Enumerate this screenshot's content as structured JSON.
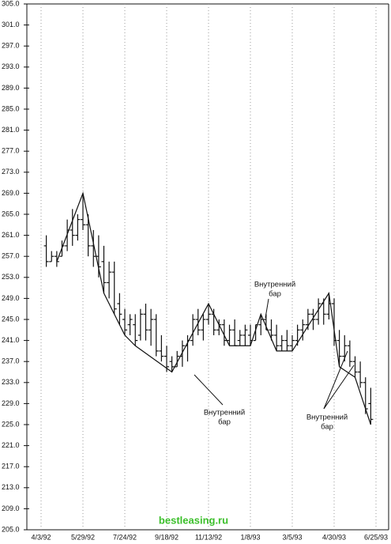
{
  "chart_data": {
    "type": "ohlc",
    "categories": [
      "4/3/92",
      null,
      null,
      null,
      null,
      null,
      null,
      null,
      "5/29/92",
      null,
      null,
      null,
      null,
      null,
      null,
      null,
      "7/24/92",
      null,
      null,
      null,
      null,
      null,
      null,
      null,
      "9/18/92",
      null,
      null,
      null,
      null,
      null,
      null,
      null,
      "11/13/92",
      null,
      null,
      null,
      null,
      null,
      null,
      null,
      "1/8/93",
      null,
      null,
      null,
      null,
      null,
      null,
      null,
      "3/5/93",
      null,
      null,
      null,
      null,
      null,
      null,
      null,
      "4/30/93",
      null,
      null,
      null,
      null,
      null,
      null,
      null,
      "6/25/93"
    ],
    "open": [
      null,
      259,
      256,
      257,
      257,
      259,
      262,
      261,
      264,
      263,
      259,
      257,
      256,
      252,
      254,
      248,
      245,
      244,
      244,
      242,
      246,
      243,
      245,
      239,
      238,
      237,
      236,
      238,
      240,
      241,
      245,
      243,
      245,
      246,
      243,
      244,
      241,
      243,
      241,
      242,
      242,
      241,
      244,
      245,
      243,
      242,
      240,
      241,
      240,
      241,
      243,
      244,
      246,
      245,
      248,
      246,
      248,
      241,
      238,
      240,
      237,
      235,
      233,
      229,
      null
    ],
    "high": [
      null,
      261,
      258,
      258,
      260,
      264,
      266,
      265,
      269,
      265,
      262,
      261,
      259,
      256,
      256,
      250,
      247,
      246,
      246,
      247,
      248,
      247,
      246,
      242,
      240,
      238,
      239,
      241,
      242,
      246,
      247,
      246,
      248,
      247,
      245,
      245,
      244,
      245,
      243,
      244,
      244,
      244,
      246,
      246,
      245,
      244,
      242,
      243,
      242,
      244,
      245,
      247,
      247,
      249,
      249,
      250,
      249,
      243,
      242,
      241,
      238,
      237,
      234,
      232,
      null
    ],
    "low": [
      null,
      255,
      256,
      255,
      257,
      258,
      259,
      260,
      262,
      257,
      255,
      253,
      250,
      249,
      246,
      244,
      242,
      242,
      240,
      241,
      241,
      240,
      238,
      237,
      235,
      235,
      236,
      236,
      237,
      240,
      242,
      241,
      244,
      242,
      242,
      240,
      240,
      240,
      240,
      240,
      240,
      241,
      242,
      243,
      241,
      239,
      239,
      239,
      239,
      240,
      241,
      243,
      243,
      244,
      244,
      245,
      240,
      236,
      237,
      236,
      234,
      232,
      227,
      225,
      null
    ],
    "close": [
      null,
      256,
      257,
      256,
      259,
      262,
      261,
      264,
      263,
      259,
      257,
      255,
      252,
      254,
      247,
      246,
      243,
      245,
      241,
      246,
      243,
      245,
      239,
      238,
      236,
      236,
      238,
      240,
      241,
      245,
      243,
      245,
      246,
      243,
      244,
      241,
      243,
      240,
      242,
      243,
      241,
      244,
      245,
      243,
      242,
      240,
      241,
      240,
      241,
      243,
      244,
      246,
      245,
      248,
      246,
      248,
      241,
      238,
      240,
      237,
      235,
      233,
      228,
      226,
      null
    ],
    "swing_line": {
      "x": [
        3,
        8,
        12,
        16,
        18,
        25,
        32,
        36,
        40,
        42,
        45,
        48,
        55,
        57,
        60,
        63
      ],
      "values": [
        256,
        269,
        250,
        242,
        240,
        235,
        248,
        240,
        240,
        246,
        239,
        239,
        250,
        236,
        234,
        225
      ]
    },
    "color": "#111111",
    "ylim": [
      205,
      305
    ],
    "yticks": [
      {
        "value": 205,
        "label": "205.0"
      },
      {
        "value": 209,
        "label": "209.0"
      },
      {
        "value": 213,
        "label": "213.0"
      },
      {
        "value": 217,
        "label": "217.0"
      },
      {
        "value": 221,
        "label": "221.0"
      },
      {
        "value": 225,
        "label": "225.0"
      },
      {
        "value": 229,
        "label": "229.0"
      },
      {
        "value": 233,
        "label": "233.0"
      },
      {
        "value": 237,
        "label": "237.0"
      },
      {
        "value": 241,
        "label": "241.0"
      },
      {
        "value": 245,
        "label": "245.0"
      },
      {
        "value": 249,
        "label": "249.0"
      },
      {
        "value": 253,
        "label": "253.0"
      },
      {
        "value": 257,
        "label": "257.0"
      },
      {
        "value": 261,
        "label": "261.0"
      },
      {
        "value": 265,
        "label": "265.0"
      },
      {
        "value": 269,
        "label": "269.0"
      },
      {
        "value": 273,
        "label": "273.0"
      },
      {
        "value": 277,
        "label": "277.0"
      },
      {
        "value": 281,
        "label": "281.0"
      },
      {
        "value": 285,
        "label": "285.0"
      },
      {
        "value": 289,
        "label": "289.0"
      },
      {
        "value": 293,
        "label": "293.0"
      },
      {
        "value": 297,
        "label": "297.0"
      },
      {
        "value": 301,
        "label": "301.0"
      },
      {
        "value": 305,
        "label": "305.0"
      }
    ],
    "grid_x": true,
    "annotations": [
      {
        "lines": [
          "Внутренний",
          "бар"
        ]
      },
      {
        "lines": [
          "Внутренний",
          "бар"
        ]
      },
      {
        "lines": [
          "Внутренний",
          "бар"
        ]
      }
    ],
    "watermark": "bestleasing.ru"
  }
}
